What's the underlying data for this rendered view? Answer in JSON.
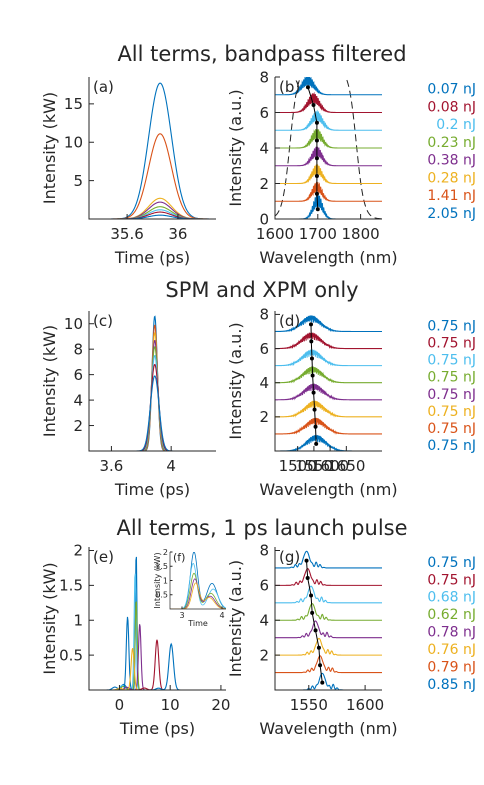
{
  "colors": {
    "blue": "#0072BD",
    "orange": "#D95319",
    "yellow": "#EDB120",
    "purple": "#7E2F8E",
    "green": "#77AC30",
    "cyan": "#4DBEEE",
    "red": "#A2142F",
    "axis": "#262626"
  },
  "titles": {
    "row1": "All terms, bandpass filtered",
    "row2": "SPM and XPM only",
    "row3": "All terms, 1 ps launch pulse"
  },
  "chart_data": [
    {
      "id": "a",
      "panel_label": "(a)",
      "type": "line",
      "xlabel": "Time (ps)",
      "ylabel": "Intensity (kW)",
      "xlim": [
        35.3,
        36.3
      ],
      "ylim": [
        0,
        18.5
      ],
      "xticks": [
        35.6,
        36
      ],
      "xtick_labels": [
        "35.6",
        "36"
      ],
      "yticks": [
        5,
        10,
        15
      ],
      "ytick_labels": [
        "5",
        "10",
        "15"
      ],
      "grid": false,
      "series": [
        {
          "color": "blue",
          "peak_x": 35.86,
          "peak_y": 17.7,
          "width_ps": 0.09
        },
        {
          "color": "orange",
          "peak_x": 35.86,
          "peak_y": 11.1,
          "width_ps": 0.09
        },
        {
          "color": "yellow",
          "peak_x": 35.86,
          "peak_y": 2.7,
          "width_ps": 0.09
        },
        {
          "color": "purple",
          "peak_x": 35.86,
          "peak_y": 2.2,
          "width_ps": 0.09
        },
        {
          "color": "green",
          "peak_x": 35.86,
          "peak_y": 1.6,
          "width_ps": 0.09
        },
        {
          "color": "cyan",
          "peak_x": 35.86,
          "peak_y": 1.2,
          "width_ps": 0.09
        },
        {
          "color": "red",
          "peak_x": 35.86,
          "peak_y": 0.9,
          "width_ps": 0.09
        },
        {
          "color": "blue",
          "peak_x": 35.86,
          "peak_y": 0.5,
          "width_ps": 0.09
        }
      ]
    },
    {
      "id": "b",
      "panel_label": "(b)",
      "type": "line",
      "xlabel": "Wavelength (nm)",
      "ylabel": "Intensity (a.u.)",
      "xlim": [
        1600,
        1850
      ],
      "ylim": [
        0,
        8
      ],
      "xticks": [
        1600,
        1700,
        1800
      ],
      "xtick_labels": [
        "1600",
        "1700",
        "1800"
      ],
      "yticks": [
        0,
        2,
        4,
        6,
        8
      ],
      "ytick_labels": [
        "0",
        "2",
        "4",
        "6",
        "8"
      ],
      "grid": false,
      "filter_curve": {
        "style": "dashed",
        "left_x": 1635,
        "right_x": 1790
      },
      "traces": [
        {
          "offset": 0,
          "label": "2.05 nJ",
          "color": "blue",
          "center": 1700,
          "peak": 1.3
        },
        {
          "offset": 1,
          "label": "1.41 nJ",
          "color": "orange",
          "center": 1698,
          "peak": 1.0
        },
        {
          "offset": 2,
          "label": "0.28 nJ",
          "color": "yellow",
          "center": 1698,
          "peak": 1.0
        },
        {
          "offset": 3,
          "label": "0.38 nJ",
          "color": "purple",
          "center": 1698,
          "peak": 1.0
        },
        {
          "offset": 4,
          "label": "0.23 nJ",
          "color": "green",
          "center": 1698,
          "peak": 1.0
        },
        {
          "offset": 5,
          "label": "0.2 nJ",
          "color": "cyan",
          "center": 1698,
          "peak": 1.0
        },
        {
          "offset": 6,
          "label": "0.08 nJ",
          "color": "red",
          "center": 1690,
          "peak": 1.0
        },
        {
          "offset": 7,
          "label": "0.07 nJ",
          "color": "blue",
          "center": 1677,
          "peak": 1.0
        }
      ]
    },
    {
      "id": "c",
      "panel_label": "(c)",
      "type": "line",
      "xlabel": "Time (ps)",
      "ylabel": "Intensity (kW)",
      "xlim": [
        3.45,
        4.3
      ],
      "ylim": [
        0,
        11
      ],
      "xticks": [
        3.6,
        4
      ],
      "xtick_labels": [
        "3.6",
        "4"
      ],
      "yticks": [
        2,
        4,
        6,
        8,
        10
      ],
      "ytick_labels": [
        "2",
        "4",
        "6",
        "8",
        "10"
      ],
      "grid": false,
      "series": [
        {
          "color": "blue",
          "peak_x": 3.89,
          "peak_y": 10.6,
          "width_ps": 0.018
        },
        {
          "color": "orange",
          "peak_x": 3.89,
          "peak_y": 9.9,
          "width_ps": 0.019
        },
        {
          "color": "yellow",
          "peak_x": 3.89,
          "peak_y": 9.3,
          "width_ps": 0.02
        },
        {
          "color": "purple",
          "peak_x": 3.89,
          "peak_y": 8.7,
          "width_ps": 0.021
        },
        {
          "color": "green",
          "peak_x": 3.89,
          "peak_y": 8.2,
          "width_ps": 0.022
        },
        {
          "color": "cyan",
          "peak_x": 3.89,
          "peak_y": 7.5,
          "width_ps": 0.024
        },
        {
          "color": "red",
          "peak_x": 3.89,
          "peak_y": 6.8,
          "width_ps": 0.026
        },
        {
          "color": "blue",
          "peak_x": 3.89,
          "peak_y": 5.9,
          "width_ps": 0.029
        }
      ]
    },
    {
      "id": "d",
      "panel_label": "(d)",
      "type": "line",
      "xlabel": "Wavelength (nm)",
      "ylabel": "Intensity (a.u.)",
      "xlim": [
        1430,
        1760
      ],
      "ylim": [
        0,
        8.2
      ],
      "xticks": [
        1500,
        1550,
        1600,
        1650
      ],
      "xtick_labels": [
        "1500",
        "1550",
        "1600",
        "1650"
      ],
      "yticks": [
        2,
        4,
        6,
        8
      ],
      "ytick_labels": [
        "2",
        "4",
        "6",
        "8"
      ],
      "grid": false,
      "traces": [
        {
          "offset": 0,
          "label": "0.75 nJ",
          "color": "blue",
          "center": 1557,
          "peak": 1.0
        },
        {
          "offset": 1,
          "label": "0.75 nJ",
          "color": "orange",
          "center": 1555,
          "peak": 1.0
        },
        {
          "offset": 2,
          "label": "0.75 nJ",
          "color": "yellow",
          "center": 1552,
          "peak": 1.0
        },
        {
          "offset": 3,
          "label": "0.75 nJ",
          "color": "purple",
          "center": 1549,
          "peak": 1.0
        },
        {
          "offset": 4,
          "label": "0.75 nJ",
          "color": "green",
          "center": 1546,
          "peak": 1.0
        },
        {
          "offset": 5,
          "label": "0.75 nJ",
          "color": "cyan",
          "center": 1544,
          "peak": 1.0
        },
        {
          "offset": 6,
          "label": "0.75 nJ",
          "color": "red",
          "center": 1542,
          "peak": 1.0
        },
        {
          "offset": 7,
          "label": "0.75 nJ",
          "color": "blue",
          "center": 1541,
          "peak": 1.0
        }
      ]
    },
    {
      "id": "e",
      "panel_label": "(e)",
      "type": "line",
      "xlabel": "Time (ps)",
      "ylabel": "Intensity (kW)",
      "xlim": [
        -6,
        21
      ],
      "ylim": [
        0,
        2.05
      ],
      "xticks": [
        0,
        10,
        20
      ],
      "xtick_labels": [
        "0",
        "10",
        "20"
      ],
      "yticks": [
        0.5,
        1,
        1.5,
        2
      ],
      "ytick_labels": [
        "0.5",
        "1",
        "1.5",
        "2"
      ],
      "grid": false,
      "series": [
        {
          "color": "blue",
          "peak_x": 3.3,
          "peak_y": 2.0,
          "width_ps": 0.15
        },
        {
          "color": "cyan",
          "peak_x": 3.1,
          "peak_y": 1.7,
          "width_ps": 0.2
        },
        {
          "color": "green",
          "peak_x": 3.3,
          "peak_y": 1.3,
          "width_ps": 0.2
        },
        {
          "color": "blue",
          "peak_x": 1.6,
          "peak_y": 1.05,
          "width_ps": 0.25
        },
        {
          "color": "purple",
          "peak_x": 4.0,
          "peak_y": 0.95,
          "width_ps": 0.25
        },
        {
          "color": "yellow",
          "peak_x": 2.6,
          "peak_y": 0.6,
          "width_ps": 0.3
        },
        {
          "color": "red",
          "peak_x": 7.4,
          "peak_y": 0.72,
          "width_ps": 0.35
        },
        {
          "color": "blue",
          "peak_x": 10.2,
          "peak_y": 0.66,
          "width_ps": 0.45
        }
      ]
    },
    {
      "id": "f",
      "panel_label": "(f)",
      "type": "line",
      "inset_of": "e",
      "xlabel": "Time",
      "ylabel": "Intensity (kW)",
      "xlim": [
        2.7,
        4.1
      ],
      "ylim": [
        0,
        2
      ],
      "xticks": [
        3,
        4
      ],
      "xtick_labels": [
        "3",
        "4"
      ],
      "yticks": [
        0.5,
        1,
        1.5,
        2
      ],
      "ytick_labels": [
        "0.5",
        "1",
        "1.5",
        "2"
      ],
      "grid": false,
      "series": [
        {
          "color": "blue",
          "peak_x": 3.3,
          "peak_y": 2.0,
          "second_x": 3.75,
          "second_y": 0.9
        },
        {
          "color": "cyan",
          "peak_x": 3.28,
          "peak_y": 1.6,
          "second_x": 3.78,
          "second_y": 0.7
        },
        {
          "color": "green",
          "peak_x": 3.3,
          "peak_y": 1.25,
          "second_x": 3.72,
          "second_y": 0.55
        },
        {
          "color": "purple",
          "peak_x": 3.32,
          "peak_y": 1.05,
          "second_x": 3.7,
          "second_y": 0.45
        },
        {
          "color": "yellow",
          "peak_x": 3.34,
          "peak_y": 0.9,
          "second_x": 3.68,
          "second_y": 0.4
        }
      ]
    },
    {
      "id": "g",
      "panel_label": "(g)",
      "type": "line",
      "xlabel": "Wavelength (nm)",
      "ylabel": "Intensity (a.u.)",
      "xlim": [
        1520,
        1615
      ],
      "ylim": [
        0,
        8.2
      ],
      "xticks": [
        1550,
        1600
      ],
      "xtick_labels": [
        "1550",
        "1600"
      ],
      "yticks": [
        2,
        4,
        6,
        8
      ],
      "ytick_labels": [
        "2",
        "4",
        "6",
        "8"
      ],
      "grid": false,
      "traces": [
        {
          "offset": 0,
          "label": "0.85 nJ",
          "color": "blue",
          "center": 1562,
          "peak": 1.0
        },
        {
          "offset": 1,
          "label": "0.79 nJ",
          "color": "orange",
          "center": 1560,
          "peak": 1.0
        },
        {
          "offset": 2,
          "label": "0.76 nJ",
          "color": "yellow",
          "center": 1559,
          "peak": 1.0
        },
        {
          "offset": 3,
          "label": "0.78 nJ",
          "color": "purple",
          "center": 1556,
          "peak": 1.0
        },
        {
          "offset": 4,
          "label": "0.62 nJ",
          "color": "green",
          "center": 1553,
          "peak": 1.0
        },
        {
          "offset": 5,
          "label": "0.68 nJ",
          "color": "cyan",
          "center": 1552,
          "peak": 1.0
        },
        {
          "offset": 6,
          "label": "0.75 nJ",
          "color": "red",
          "center": 1549,
          "peak": 1.0
        },
        {
          "offset": 7,
          "label": "0.75 nJ",
          "color": "blue",
          "center": 1548,
          "peak": 1.0
        }
      ]
    }
  ]
}
